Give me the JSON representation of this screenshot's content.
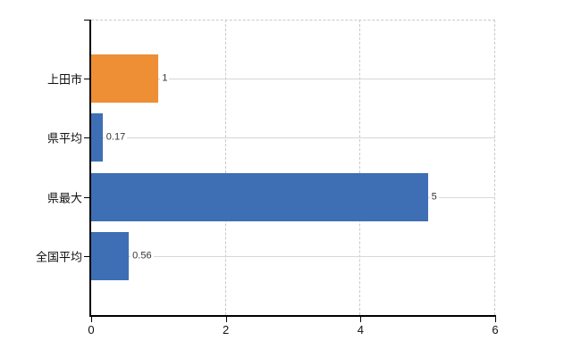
{
  "chart_data": {
    "type": "bar",
    "orientation": "horizontal",
    "title": "",
    "xlabel": "",
    "ylabel": "",
    "categories": [
      "上田市",
      "県平均",
      "県最大",
      "全国平均"
    ],
    "values": [
      1,
      0.17,
      5,
      0.56
    ],
    "value_labels": [
      "1",
      "0.17",
      "5",
      "0.56"
    ],
    "bar_colors": [
      "#ee8e35",
      "#3e6fb4",
      "#3e6fb4",
      "#3e6fb4"
    ],
    "accent_orange": "#ee8e35",
    "accent_blue": "#3e6fb4",
    "xlim": [
      0,
      6
    ],
    "x_ticks": [
      0,
      2,
      4,
      6
    ],
    "x_tick_labels": [
      "0",
      "2",
      "4",
      "6"
    ],
    "legend": "none",
    "grid": {
      "vertical_style": "dashed",
      "horizontal_style": "solid",
      "vertical_color": "#c9c9c9",
      "horizontal_color": "#d2d8d8"
    },
    "axis_color": "#000000",
    "value_label_color": "#333333"
  }
}
